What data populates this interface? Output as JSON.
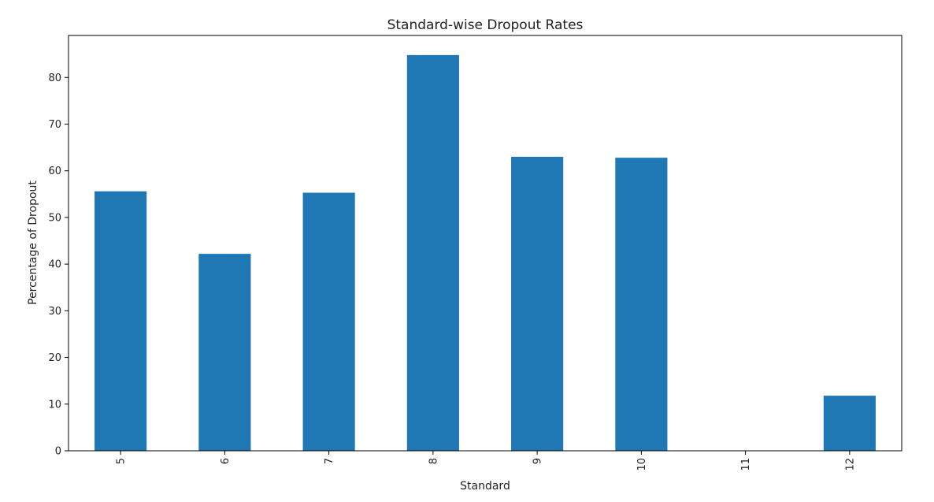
{
  "chart_data": {
    "type": "bar",
    "title": "Standard-wise Dropout Rates",
    "xlabel": "Standard",
    "ylabel": "Percentage of Dropout",
    "categories": [
      "5",
      "6",
      "7",
      "8",
      "9",
      "10",
      "11",
      "12"
    ],
    "values": [
      55.6,
      42.2,
      55.3,
      84.8,
      63.0,
      62.8,
      0,
      11.8
    ],
    "ylim": [
      0,
      89
    ],
    "yticks": [
      0,
      10,
      20,
      30,
      40,
      50,
      60,
      70,
      80
    ],
    "grid": false,
    "bar_color": "#1f77b4"
  }
}
